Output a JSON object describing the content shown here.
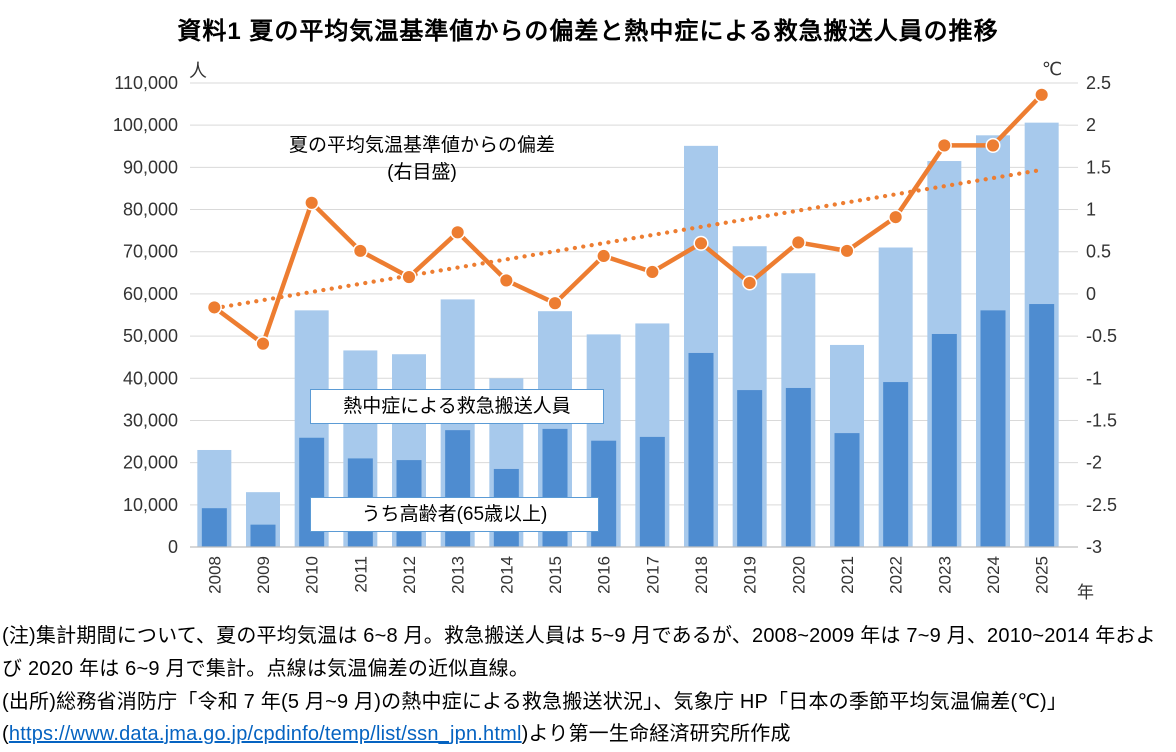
{
  "title": "資料1 夏の平均気温基準値からの偏差と熱中症による救急搬送人員の推移",
  "colors": {
    "bar_total": "#A7C9EC",
    "bar_elderly": "#4E8CD0",
    "line": "#ED7D31",
    "gridline": "#D9D9D9",
    "axis_line": "#BFBFBF",
    "annotation_border": "#5B9BD5",
    "link": "#0563C1"
  },
  "chart_data": {
    "type": "combo_bar_line",
    "title": "夏の平均気温基準値からの偏差と熱中症による救急搬送人員の推移",
    "categories": [
      "2008",
      "2009",
      "2010",
      "2011",
      "2012",
      "2013",
      "2014",
      "2015",
      "2016",
      "2017",
      "2018",
      "2019",
      "2020",
      "2021",
      "2022",
      "2023",
      "2024",
      "2025"
    ],
    "series": [
      {
        "name": "熱中症による救急搬送人員",
        "type": "bar",
        "axis": "left",
        "values": [
          23000,
          13000,
          56100,
          46600,
          45700,
          58700,
          40000,
          55900,
          50400,
          53000,
          95100,
          71300,
          64900,
          47900,
          71000,
          91500,
          97600,
          100600
        ]
      },
      {
        "name": "うち高齢者(65歳以上)",
        "type": "bar",
        "axis": "left",
        "values": [
          9200,
          5300,
          25900,
          21000,
          20600,
          27700,
          18500,
          28000,
          25200,
          26100,
          46000,
          37200,
          37700,
          27000,
          39100,
          50500,
          56100,
          57600
        ]
      },
      {
        "name": "夏の平均気温基準値からの偏差(右目盛)",
        "type": "line",
        "axis": "right",
        "values": [
          -0.16,
          -0.59,
          1.08,
          0.51,
          0.2,
          0.73,
          0.16,
          -0.11,
          0.45,
          0.26,
          0.6,
          0.13,
          0.61,
          0.51,
          0.91,
          1.76,
          1.76,
          2.36
        ]
      },
      {
        "name": "気温偏差の近似直線(点線)",
        "type": "dotted_trend",
        "axis": "right",
        "endpoint_values": [
          -0.17,
          1.47
        ]
      }
    ],
    "left_axis": {
      "unit": "人",
      "min": 0,
      "max": 110000,
      "step": 10000,
      "ticks": [
        "0",
        "10,000",
        "20,000",
        "30,000",
        "40,000",
        "50,000",
        "60,000",
        "70,000",
        "80,000",
        "90,000",
        "100,000",
        "110,000"
      ]
    },
    "right_axis": {
      "unit": "℃",
      "min": -3,
      "max": 2.5,
      "step": 0.5,
      "ticks": [
        "-3",
        "-2.5",
        "-2",
        "-1.5",
        "-1",
        "-0.5",
        "0",
        "0.5",
        "1",
        "1.5",
        "2",
        "2.5"
      ]
    },
    "x_axis": {
      "unit": "年"
    },
    "grid": true,
    "legend_position": "annotations-in-plot"
  },
  "annotations": {
    "line_label_1": "夏の平均気温基準値からの偏差",
    "line_label_2": "(右目盛)",
    "bar_label": "熱中症による救急搬送人員",
    "elderly_label": "うち高齢者(65歳以上)"
  },
  "footer": {
    "note": "(注)集計期間について、夏の平均気温は 6~8 月。救急搬送人員は 5~9 月であるが、2008~2009 年は 7~9 月、2010~2014 年および 2020 年は 6~9 月で集計。点線は気温偏差の近似直線。",
    "source_prefix": "(出所)総務省消防庁「令和 7 年(5 月~9 月)の熱中症による救急搬送状況」、気象庁 HP「日本の季節平均気温偏差(℃)」(",
    "source_link": "https://www.data.jma.go.jp/cpdinfo/temp/list/ssn_jpn.html",
    "source_suffix": ")より第一生命経済研究所作成"
  }
}
